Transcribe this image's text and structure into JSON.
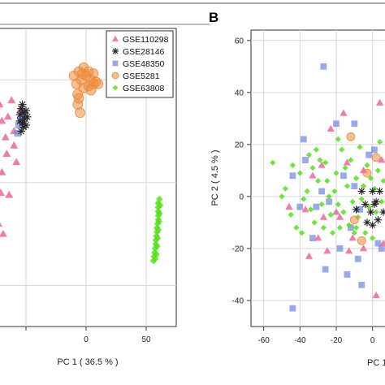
{
  "colors": {
    "GSE110298": "#ec6fa1",
    "GSE28146": "#222222",
    "GSE48350": "#6f86e0",
    "GSE5281": "#ee8a3a",
    "GSE63808": "#53e018",
    "grid": "#d6d6d6"
  },
  "chart_data": [
    {
      "panel": "A",
      "type": "scatter",
      "panel_label": "",
      "xlabel": "PC 1 ( 36.5 % )",
      "ylabel": "",
      "xlim": [
        -75,
        75
      ],
      "ylim": [
        -70,
        75
      ],
      "xticks": [
        -50,
        0,
        50
      ],
      "xtick_labels": [
        "",
        "0",
        "50"
      ],
      "yticks": [],
      "grid": true,
      "legend": {
        "placement": "top-right",
        "entries": [
          {
            "name": "GSE110298",
            "marker": "triangle"
          },
          {
            "name": "GSE28146",
            "marker": "asterisk"
          },
          {
            "name": "GSE48350",
            "marker": "square"
          },
          {
            "name": "GSE5281",
            "marker": "circle"
          },
          {
            "name": "GSE63808",
            "marker": "diamond"
          }
        ]
      },
      "series": [
        {
          "name": "GSE110298",
          "marker": "triangle",
          "points": [
            [
              -72,
              38
            ],
            [
              -70,
              30
            ],
            [
              -65,
              32
            ],
            [
              -67,
              22
            ],
            [
              -60,
              25
            ],
            [
              -58,
              10
            ],
            [
              -70,
              5
            ],
            [
              -62,
              40
            ],
            [
              -55,
              35
            ],
            [
              -66,
              14
            ],
            [
              -71,
              -5
            ],
            [
              -64,
              -6
            ],
            [
              -73,
              -20
            ],
            [
              -69,
              -25
            ],
            [
              -60,
              18
            ]
          ]
        },
        {
          "name": "GSE28146",
          "marker": "asterisk",
          "points": [
            [
              -54,
              36
            ],
            [
              -52,
              34
            ],
            [
              -50,
              35
            ],
            [
              -51,
              31
            ],
            [
              -53,
              29
            ],
            [
              -49,
              32
            ],
            [
              -55,
              33
            ],
            [
              -52,
              27
            ],
            [
              -54,
              25
            ],
            [
              -50,
              28
            ],
            [
              -53,
              38
            ],
            [
              -55,
              30
            ]
          ]
        },
        {
          "name": "GSE48350",
          "marker": "square",
          "points": [
            [
              -56,
              28
            ],
            [
              -54,
              31
            ],
            [
              -57,
              24
            ],
            [
              -53,
              33
            ]
          ]
        },
        {
          "name": "GSE5281",
          "marker": "circle",
          "points": [
            [
              -6,
              54
            ],
            [
              -2,
              56
            ],
            [
              2,
              54
            ],
            [
              -4,
              50
            ],
            [
              0,
              52
            ],
            [
              4,
              50
            ],
            [
              6,
              48
            ],
            [
              2,
              47
            ],
            [
              -2,
              46
            ],
            [
              8,
              49
            ],
            [
              10,
              48
            ],
            [
              -10,
              52
            ],
            [
              -8,
              48
            ],
            [
              -7,
              43
            ],
            [
              -6,
              41
            ],
            [
              -5,
              34
            ],
            [
              -7,
              38
            ],
            [
              -3,
              53
            ],
            [
              4,
              45
            ],
            [
              6,
              53
            ]
          ]
        },
        {
          "name": "GSE63808",
          "marker": "diamond",
          "points": [
            [
              60,
              -10
            ],
            [
              60,
              -12
            ],
            [
              60,
              -14
            ],
            [
              60,
              -16
            ],
            [
              60,
              -18
            ],
            [
              59.5,
              -20
            ],
            [
              59,
              -22
            ],
            [
              59,
              -24
            ],
            [
              58.5,
              -26
            ],
            [
              58,
              -28
            ],
            [
              58,
              -30
            ],
            [
              57.5,
              -32
            ],
            [
              57,
              -34
            ],
            [
              56.5,
              -36
            ],
            [
              56,
              -38
            ],
            [
              61,
              -8
            ],
            [
              61.5,
              -11
            ],
            [
              61,
              -15
            ],
            [
              60.5,
              -19
            ],
            [
              60,
              -23
            ],
            [
              59.5,
              -27
            ],
            [
              59,
              -31
            ],
            [
              58.5,
              -35
            ],
            [
              57.5,
              -37
            ]
          ]
        }
      ]
    },
    {
      "panel": "B",
      "type": "scatter",
      "panel_label": "B",
      "xlabel": "PC 1",
      "ylabel": "PC 2 ( 4.5 % )",
      "xlim": [
        -67,
        10
      ],
      "ylim": [
        -50,
        64
      ],
      "xticks": [
        -60,
        -40,
        -20,
        0
      ],
      "xtick_labels": [
        "-60",
        "-40",
        "-20",
        "0"
      ],
      "yticks": [
        -40,
        -20,
        0,
        20,
        40,
        60
      ],
      "grid": true,
      "series": [
        {
          "name": "GSE110298",
          "marker": "triangle",
          "points": [
            [
              -37,
              -5
            ],
            [
              -33,
              8
            ],
            [
              -28,
              12
            ],
            [
              -46,
              -4
            ],
            [
              -30,
              -16
            ],
            [
              -16,
              32
            ],
            [
              -5,
              10
            ],
            [
              -5,
              -20
            ],
            [
              -11,
              -16
            ],
            [
              -23,
              26
            ],
            [
              -35,
              -23
            ],
            [
              -27,
              -8
            ],
            [
              -18,
              -8
            ],
            [
              -14,
              13
            ],
            [
              4,
              36
            ],
            [
              2,
              -38
            ],
            [
              5,
              14
            ],
            [
              -25,
              -21
            ],
            [
              -13,
              -21
            ],
            [
              6,
              -18
            ],
            [
              -20,
              -6
            ]
          ]
        },
        {
          "name": "GSE28146",
          "marker": "asterisk",
          "points": [
            [
              -4,
              -3
            ],
            [
              -1,
              -6
            ],
            [
              2,
              -2
            ],
            [
              -6,
              2
            ],
            [
              0,
              2
            ],
            [
              3,
              -9
            ],
            [
              -9,
              -5
            ],
            [
              1,
              -3
            ],
            [
              -3,
              -10
            ],
            [
              6,
              -6
            ],
            [
              4,
              2
            ],
            [
              0,
              -11
            ]
          ]
        },
        {
          "name": "GSE48350",
          "marker": "square",
          "points": [
            [
              -27,
              50
            ],
            [
              -20,
              28
            ],
            [
              -10,
              28
            ],
            [
              -2,
              16
            ],
            [
              -7,
              -5
            ],
            [
              -44,
              -43
            ],
            [
              -33,
              -16
            ],
            [
              -12,
              -12
            ],
            [
              5,
              -20
            ],
            [
              -24,
              -2
            ],
            [
              -16,
              8
            ],
            [
              -28,
              2
            ],
            [
              -44,
              8
            ],
            [
              3,
              -18
            ],
            [
              -37,
              14
            ],
            [
              -26,
              -28
            ],
            [
              -6,
              -34
            ],
            [
              -8,
              -24
            ],
            [
              -40,
              -4
            ],
            [
              -18,
              -20
            ],
            [
              -31,
              -4
            ],
            [
              -10,
              4
            ],
            [
              1,
              18
            ],
            [
              -14,
              -30
            ],
            [
              -38,
              22
            ]
          ]
        },
        {
          "name": "GSE5281",
          "marker": "circle",
          "points": [
            [
              -12,
              23
            ],
            [
              -6,
              -17
            ],
            [
              -10,
              -9
            ],
            [
              -3,
              9
            ],
            [
              2,
              15
            ]
          ]
        },
        {
          "name": "GSE63808",
          "marker": "diamond",
          "points": [
            [
              -55,
              13
            ],
            [
              -48,
              3
            ],
            [
              -45,
              -7
            ],
            [
              -40,
              9
            ],
            [
              -38,
              -1
            ],
            [
              -35,
              16
            ],
            [
              -32,
              -10
            ],
            [
              -30,
              6
            ],
            [
              -28,
              -3
            ],
            [
              -26,
              13
            ],
            [
              -24,
              0
            ],
            [
              -22,
              -14
            ],
            [
              -20,
              9
            ],
            [
              -19,
              -3
            ],
            [
              -17,
              18
            ],
            [
              -16,
              -6
            ],
            [
              -14,
              4
            ],
            [
              -13,
              -11
            ],
            [
              -12,
              14
            ],
            [
              -11,
              -2
            ],
            [
              -9,
              7
            ],
            [
              -8,
              -8
            ],
            [
              -7,
              19
            ],
            [
              -6,
              -1
            ],
            [
              -5,
              4
            ],
            [
              -4,
              -14
            ],
            [
              -3,
              12
            ],
            [
              -2,
              -4
            ],
            [
              -1,
              7
            ],
            [
              0,
              -16
            ],
            [
              1,
              3
            ],
            [
              2,
              -6
            ],
            [
              3,
              10
            ],
            [
              4,
              21
            ],
            [
              5,
              -2
            ],
            [
              6,
              6
            ],
            [
              -42,
              -12
            ],
            [
              -36,
              2
            ],
            [
              -34,
              -5
            ],
            [
              -29,
              14
            ],
            [
              -27,
              -12
            ],
            [
              -25,
              6
            ],
            [
              -23,
              -7
            ],
            [
              -21,
              2
            ],
            [
              -18,
              -12
            ],
            [
              -15,
              11
            ],
            [
              -10,
              -14
            ],
            [
              -44,
              12
            ],
            [
              -33,
              11
            ],
            [
              -19,
              22
            ],
            [
              -9,
              -12
            ],
            [
              -50,
              0
            ],
            [
              -39,
              -14
            ],
            [
              -31,
              18
            ]
          ]
        }
      ]
    }
  ]
}
